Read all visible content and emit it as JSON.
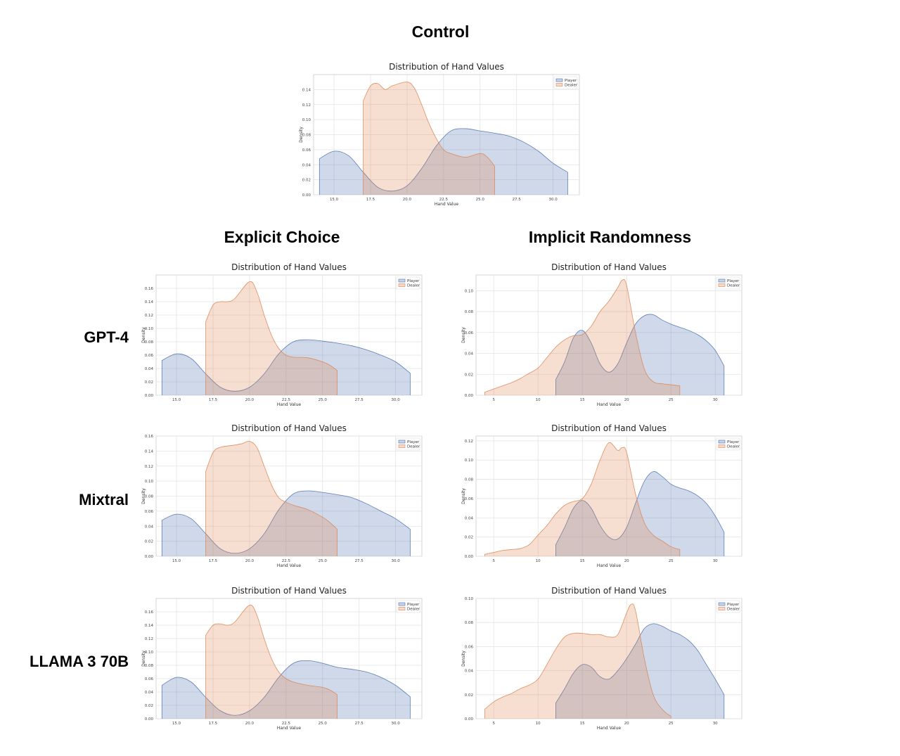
{
  "headings": {
    "control": "Control",
    "explicit": "Explicit Choice",
    "implicit": "Implicit Randomness"
  },
  "rows": {
    "gpt4": "GPT-4",
    "mixtral": "Mixtral",
    "llama": "LLAMA 3 70B"
  },
  "colors": {
    "player": "#4c72b0",
    "dealer": "#dd8452"
  },
  "chart_data": [
    {
      "id": "control",
      "type": "area",
      "title": "Distribution of Hand Values",
      "xlabel": "Hand Value",
      "ylabel": "Density",
      "xlim": [
        13.6,
        31.8
      ],
      "ylim": [
        0,
        0.16
      ],
      "xticks": [
        "15.0",
        "17.5",
        "20.0",
        "22.5",
        "25.0",
        "27.5",
        "30.0"
      ],
      "yticks": [
        "0.00",
        "0.02",
        "0.04",
        "0.06",
        "0.08",
        "0.10",
        "0.12",
        "0.14"
      ],
      "legend": [
        "Player",
        "Dealer"
      ],
      "series": [
        {
          "name": "Player",
          "x": [
            14,
            15,
            16,
            17,
            18,
            19,
            20,
            21,
            22,
            23,
            24,
            25,
            26,
            27,
            28,
            29,
            30,
            31
          ],
          "values": [
            0.048,
            0.058,
            0.052,
            0.03,
            0.01,
            0.005,
            0.012,
            0.035,
            0.065,
            0.085,
            0.088,
            0.085,
            0.082,
            0.078,
            0.07,
            0.058,
            0.042,
            0.03
          ]
        },
        {
          "name": "Dealer",
          "x": [
            17,
            17.5,
            18,
            18.5,
            19,
            20,
            20.5,
            21,
            21.5,
            22,
            22.5,
            23,
            24,
            25,
            25.5,
            26
          ],
          "values": [
            0.125,
            0.145,
            0.148,
            0.14,
            0.145,
            0.15,
            0.142,
            0.12,
            0.095,
            0.075,
            0.06,
            0.055,
            0.05,
            0.055,
            0.05,
            0.038
          ]
        }
      ]
    },
    {
      "id": "gpt4-explicit",
      "type": "area",
      "title": "Distribution of Hand Values",
      "xlabel": "Hand Value",
      "ylabel": "Density",
      "xlim": [
        13.6,
        31.8
      ],
      "ylim": [
        0,
        0.18
      ],
      "xticks": [
        "15.0",
        "17.5",
        "20.0",
        "22.5",
        "25.0",
        "27.5",
        "30.0"
      ],
      "yticks": [
        "0.00",
        "0.02",
        "0.04",
        "0.06",
        "0.08",
        "0.10",
        "0.12",
        "0.14",
        "0.16"
      ],
      "legend": [
        "Player",
        "Dealer"
      ],
      "series": [
        {
          "name": "Player",
          "x": [
            14,
            15,
            16,
            17,
            18,
            19,
            20,
            21,
            22,
            23,
            24,
            25,
            26,
            27,
            28,
            29,
            30,
            31
          ],
          "values": [
            0.052,
            0.062,
            0.055,
            0.032,
            0.012,
            0.006,
            0.012,
            0.032,
            0.062,
            0.08,
            0.083,
            0.081,
            0.078,
            0.074,
            0.068,
            0.06,
            0.05,
            0.033
          ]
        },
        {
          "name": "Dealer",
          "x": [
            17,
            17.5,
            18,
            18.5,
            19,
            20,
            20.5,
            21,
            21.5,
            22,
            22.5,
            23,
            24,
            25,
            25.5,
            26
          ],
          "values": [
            0.11,
            0.135,
            0.14,
            0.14,
            0.145,
            0.17,
            0.155,
            0.12,
            0.09,
            0.07,
            0.06,
            0.057,
            0.056,
            0.05,
            0.045,
            0.037
          ]
        }
      ]
    },
    {
      "id": "gpt4-implicit",
      "type": "area",
      "title": "Distribution of Hand Values",
      "xlabel": "Hand Value",
      "ylabel": "Density",
      "xlim": [
        3,
        33
      ],
      "ylim": [
        0,
        0.115
      ],
      "xticks": [
        "5",
        "10",
        "15",
        "20",
        "25",
        "30"
      ],
      "yticks": [
        "0.00",
        "0.02",
        "0.04",
        "0.06",
        "0.08",
        "0.10"
      ],
      "legend": [
        "Player",
        "Dealer"
      ],
      "series": [
        {
          "name": "Player",
          "x": [
            12,
            13,
            14,
            15,
            16,
            17,
            18,
            19,
            20,
            21,
            22,
            23,
            24,
            25,
            26,
            27,
            28,
            29,
            30,
            31
          ],
          "values": [
            0.015,
            0.032,
            0.055,
            0.062,
            0.05,
            0.03,
            0.022,
            0.03,
            0.05,
            0.068,
            0.076,
            0.077,
            0.072,
            0.068,
            0.065,
            0.062,
            0.058,
            0.052,
            0.043,
            0.028
          ]
        },
        {
          "name": "Dealer",
          "x": [
            4,
            5,
            6,
            7,
            8,
            9,
            10,
            11,
            12,
            13,
            14,
            15,
            16,
            17,
            18,
            19,
            19.5,
            20,
            21,
            22,
            23,
            24,
            25,
            26
          ],
          "values": [
            0.003,
            0.006,
            0.009,
            0.012,
            0.016,
            0.021,
            0.026,
            0.036,
            0.046,
            0.053,
            0.057,
            0.058,
            0.066,
            0.08,
            0.09,
            0.103,
            0.11,
            0.105,
            0.06,
            0.025,
            0.013,
            0.011,
            0.01,
            0.009
          ]
        }
      ]
    },
    {
      "id": "mixtral-explicit",
      "type": "area",
      "title": "Distribution of Hand Values",
      "xlabel": "Hand Value",
      "ylabel": "Density",
      "xlim": [
        13.6,
        31.8
      ],
      "ylim": [
        0,
        0.16
      ],
      "xticks": [
        "15.0",
        "17.5",
        "20.0",
        "22.5",
        "25.0",
        "27.5",
        "30.0"
      ],
      "yticks": [
        "0.00",
        "0.02",
        "0.04",
        "0.06",
        "0.08",
        "0.10",
        "0.12",
        "0.14",
        "0.16"
      ],
      "legend": [
        "Player",
        "Dealer"
      ],
      "series": [
        {
          "name": "Player",
          "x": [
            14,
            15,
            16,
            17,
            18,
            19,
            20,
            21,
            22,
            23,
            24,
            25,
            26,
            27,
            28,
            29,
            30,
            31
          ],
          "values": [
            0.048,
            0.056,
            0.05,
            0.03,
            0.01,
            0.004,
            0.01,
            0.03,
            0.062,
            0.083,
            0.087,
            0.085,
            0.082,
            0.078,
            0.07,
            0.06,
            0.05,
            0.036
          ]
        },
        {
          "name": "Dealer",
          "x": [
            17,
            17.5,
            18,
            19,
            19.5,
            20,
            20.5,
            21,
            21.5,
            22,
            22.5,
            23,
            24,
            25,
            25.5,
            26
          ],
          "values": [
            0.113,
            0.138,
            0.145,
            0.148,
            0.15,
            0.153,
            0.145,
            0.12,
            0.095,
            0.078,
            0.072,
            0.068,
            0.062,
            0.052,
            0.045,
            0.036
          ]
        }
      ]
    },
    {
      "id": "mixtral-implicit",
      "type": "area",
      "title": "Distribution of Hand Values",
      "xlabel": "Hand Value",
      "ylabel": "Density",
      "xlim": [
        3,
        33
      ],
      "ylim": [
        0,
        0.125
      ],
      "xticks": [
        "5",
        "10",
        "15",
        "20",
        "25",
        "30"
      ],
      "yticks": [
        "0.00",
        "0.02",
        "0.04",
        "0.06",
        "0.08",
        "0.10",
        "0.12"
      ],
      "legend": [
        "Player",
        "Dealer"
      ],
      "series": [
        {
          "name": "Player",
          "x": [
            12,
            13,
            14,
            15,
            16,
            17,
            18,
            19,
            20,
            21,
            22,
            23,
            24,
            25,
            26,
            27,
            28,
            29,
            30,
            31
          ],
          "values": [
            0.012,
            0.03,
            0.05,
            0.058,
            0.05,
            0.032,
            0.02,
            0.018,
            0.03,
            0.055,
            0.078,
            0.088,
            0.083,
            0.075,
            0.071,
            0.068,
            0.063,
            0.055,
            0.042,
            0.025
          ]
        },
        {
          "name": "Dealer",
          "x": [
            4,
            5,
            6,
            7,
            8,
            9,
            10,
            11,
            12,
            13,
            14,
            15,
            16,
            17,
            18,
            19,
            19.5,
            20,
            21,
            22,
            23,
            24,
            25,
            26
          ],
          "values": [
            0.002,
            0.004,
            0.006,
            0.007,
            0.008,
            0.012,
            0.022,
            0.032,
            0.044,
            0.053,
            0.057,
            0.06,
            0.075,
            0.1,
            0.118,
            0.11,
            0.113,
            0.108,
            0.065,
            0.035,
            0.022,
            0.016,
            0.01,
            0.007
          ]
        }
      ]
    },
    {
      "id": "llama-explicit",
      "type": "area",
      "title": "Distribution of Hand Values",
      "xlabel": "Hand Value",
      "ylabel": "Density",
      "xlim": [
        13.6,
        31.8
      ],
      "ylim": [
        0,
        0.18
      ],
      "xticks": [
        "15.0",
        "17.5",
        "20.0",
        "22.5",
        "25.0",
        "27.5",
        "30.0"
      ],
      "yticks": [
        "0.00",
        "0.02",
        "0.04",
        "0.06",
        "0.08",
        "0.10",
        "0.12",
        "0.14",
        "0.16"
      ],
      "legend": [
        "Player",
        "Dealer"
      ],
      "series": [
        {
          "name": "Player",
          "x": [
            14,
            15,
            16,
            17,
            18,
            19,
            20,
            21,
            22,
            23,
            24,
            25,
            26,
            27,
            28,
            29,
            30,
            31
          ],
          "values": [
            0.05,
            0.062,
            0.055,
            0.032,
            0.012,
            0.005,
            0.012,
            0.032,
            0.062,
            0.083,
            0.087,
            0.083,
            0.077,
            0.074,
            0.07,
            0.062,
            0.05,
            0.033
          ]
        },
        {
          "name": "Dealer",
          "x": [
            17,
            17.5,
            18,
            18.5,
            19,
            20,
            20.5,
            21,
            21.5,
            22,
            22.5,
            23,
            24,
            25,
            25.5,
            26
          ],
          "values": [
            0.125,
            0.14,
            0.142,
            0.14,
            0.145,
            0.17,
            0.155,
            0.12,
            0.09,
            0.07,
            0.06,
            0.055,
            0.05,
            0.047,
            0.043,
            0.036
          ]
        }
      ]
    },
    {
      "id": "llama-implicit",
      "type": "area",
      "title": "Distribution of Hand Values",
      "xlabel": "Hand Value",
      "ylabel": "Density",
      "xlim": [
        3,
        33
      ],
      "ylim": [
        0,
        0.1
      ],
      "xticks": [
        "5",
        "10",
        "15",
        "20",
        "25",
        "30"
      ],
      "yticks": [
        "0.00",
        "0.02",
        "0.04",
        "0.06",
        "0.08",
        "0.10"
      ],
      "legend": [
        "Player",
        "Dealer"
      ],
      "series": [
        {
          "name": "Player",
          "x": [
            12,
            13,
            14,
            15,
            16,
            17,
            18,
            19,
            20,
            21,
            22,
            23,
            24,
            25,
            26,
            27,
            28,
            29,
            30,
            31
          ],
          "values": [
            0.013,
            0.025,
            0.038,
            0.045,
            0.043,
            0.035,
            0.033,
            0.04,
            0.05,
            0.062,
            0.075,
            0.079,
            0.077,
            0.073,
            0.07,
            0.065,
            0.057,
            0.045,
            0.033,
            0.02
          ]
        },
        {
          "name": "Dealer",
          "x": [
            4,
            5,
            6,
            7,
            8,
            9,
            10,
            11,
            12,
            13,
            14,
            15,
            16,
            17,
            18,
            19,
            20,
            20.5,
            21,
            22,
            23,
            24,
            25
          ],
          "values": [
            0.008,
            0.014,
            0.018,
            0.021,
            0.025,
            0.028,
            0.033,
            0.045,
            0.058,
            0.068,
            0.071,
            0.071,
            0.07,
            0.07,
            0.068,
            0.07,
            0.088,
            0.095,
            0.09,
            0.05,
            0.02,
            0.008,
            0.002
          ]
        }
      ]
    }
  ]
}
